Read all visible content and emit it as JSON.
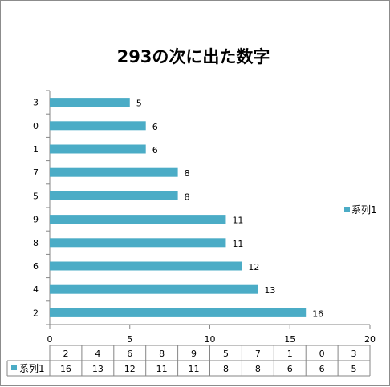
{
  "chart_data": {
    "type": "bar",
    "orientation": "horizontal",
    "title": "293の次に出た数字",
    "categories": [
      "2",
      "4",
      "6",
      "8",
      "9",
      "5",
      "7",
      "1",
      "0",
      "3"
    ],
    "series": [
      {
        "name": "系列1",
        "values": [
          16,
          13,
          12,
          11,
          11,
          8,
          8,
          6,
          6,
          5
        ],
        "color": "#4BACC6"
      }
    ],
    "xlim": [
      0,
      20
    ],
    "xticks": [
      "0",
      "5",
      "10",
      "15",
      "20"
    ],
    "grid": false,
    "legend_position": "right",
    "data_table": true
  }
}
